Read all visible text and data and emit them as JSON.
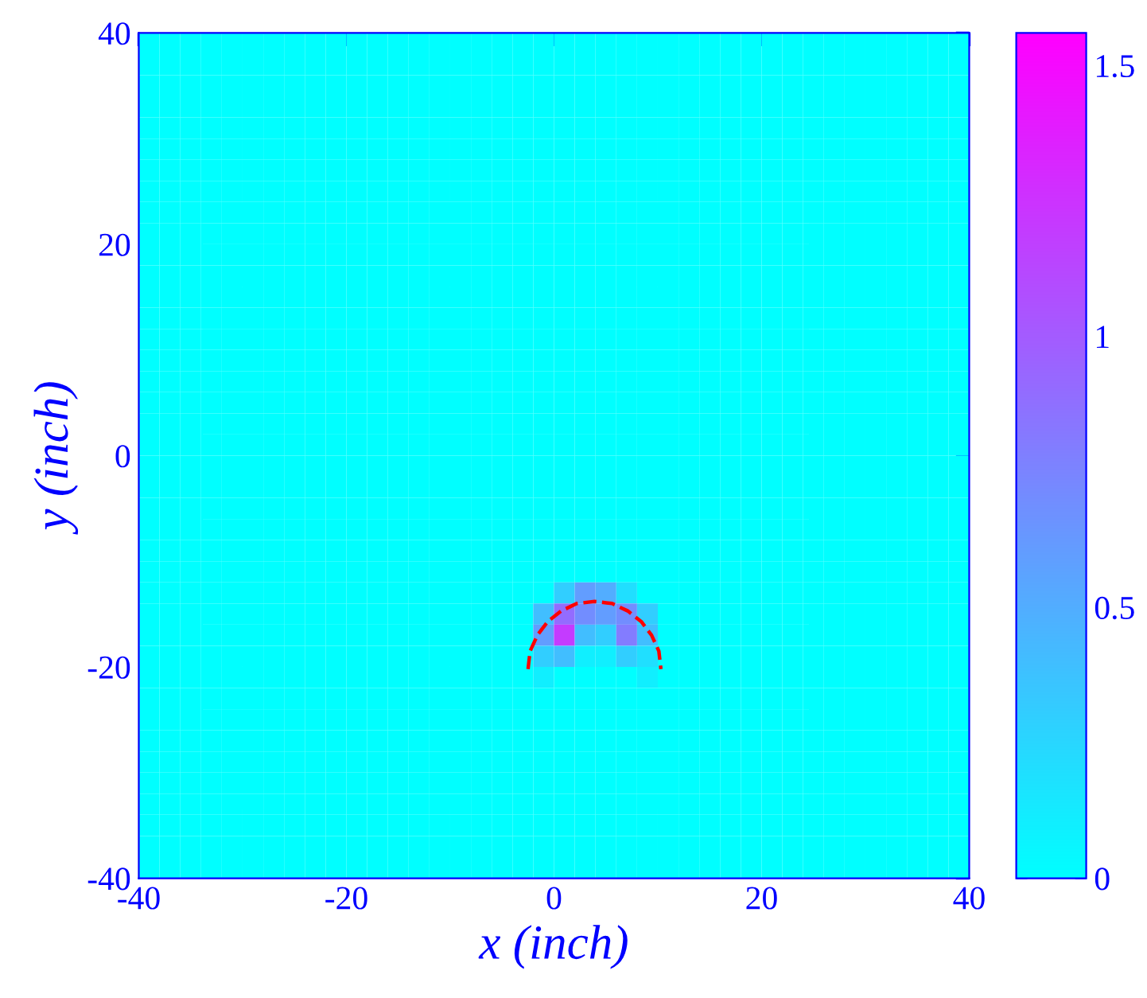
{
  "chart_data": {
    "type": "heatmap",
    "xlabel": "x (inch)",
    "ylabel": "y (inch)",
    "x": [
      -39,
      -37,
      -35,
      -33,
      -31,
      -29,
      -27,
      -25,
      -23,
      -21,
      -19,
      -17,
      -15,
      -13,
      -11,
      -9,
      -7,
      -5,
      -3,
      -1,
      1,
      3,
      5,
      7,
      9,
      11,
      13,
      15,
      17,
      19,
      21,
      23,
      25,
      27,
      29,
      31,
      33,
      35,
      37,
      39
    ],
    "y": [
      39,
      37,
      35,
      33,
      31,
      29,
      27,
      25,
      23,
      21,
      19,
      17,
      15,
      13,
      11,
      9,
      7,
      5,
      3,
      1,
      -1,
      -3,
      -5,
      -7,
      -9,
      -11,
      -13,
      -15,
      -17,
      -19,
      -21,
      -23,
      -25,
      -27,
      -29,
      -31,
      -33,
      -35,
      -37,
      -39
    ],
    "cells": [
      [
        0,
        0,
        0,
        0,
        0,
        0,
        0,
        0,
        0,
        0,
        0,
        0,
        0,
        0,
        0,
        0,
        0,
        0,
        0,
        0,
        0,
        0,
        0,
        0,
        0,
        0,
        0,
        0,
        0,
        0,
        0,
        0,
        0,
        0,
        0,
        0,
        0,
        0,
        0,
        0
      ],
      [
        0,
        0,
        0,
        0,
        0,
        0,
        0,
        0,
        0,
        0,
        0,
        0,
        0,
        0,
        0,
        0,
        0,
        0,
        0,
        0,
        0,
        0,
        0,
        0,
        0,
        0,
        0,
        0,
        0,
        0,
        0,
        0,
        0,
        0,
        0,
        0,
        0,
        0,
        0,
        0
      ],
      [
        0,
        0,
        0,
        0,
        0,
        0,
        0,
        0,
        0,
        0,
        0,
        0,
        0,
        0,
        0,
        0,
        0,
        0,
        0,
        0,
        0,
        0,
        0,
        0,
        0,
        0,
        0,
        0,
        0,
        0,
        0,
        0,
        0,
        0,
        0,
        0,
        0,
        0,
        0,
        0
      ],
      [
        0,
        0,
        0,
        0,
        0,
        0,
        0,
        0,
        0,
        0,
        0,
        0,
        0,
        0,
        0,
        0,
        0,
        0,
        0,
        0,
        0,
        0,
        0,
        0,
        0,
        0,
        0,
        0,
        0,
        0,
        0,
        0,
        0,
        0,
        0,
        0,
        0,
        0,
        0,
        0
      ],
      [
        0,
        0,
        0,
        0,
        0,
        0,
        0,
        0,
        0,
        0,
        0,
        0,
        0,
        0,
        0,
        0,
        0,
        0,
        0,
        0,
        0,
        0,
        0,
        0,
        0,
        0,
        0,
        0,
        0,
        0,
        0,
        0,
        0,
        0,
        0,
        0,
        0,
        0,
        0,
        0
      ],
      [
        0,
        0,
        0,
        0,
        0,
        0,
        0,
        0,
        0,
        0,
        0,
        0,
        0,
        0,
        0,
        0,
        0,
        0,
        0,
        0,
        0,
        0,
        0,
        0,
        0,
        0,
        0,
        0,
        0,
        0,
        0,
        0,
        0,
        0,
        0,
        0,
        0,
        0,
        0,
        0
      ],
      [
        0,
        0,
        0,
        0,
        0,
        0,
        0,
        0,
        0,
        0,
        0,
        0,
        0,
        0,
        0,
        0,
        0,
        0,
        0,
        0,
        0,
        0,
        0,
        0,
        0,
        0,
        0,
        0,
        0,
        0,
        0,
        0,
        0,
        0,
        0,
        0,
        0,
        0,
        0,
        0
      ],
      [
        0,
        0,
        0,
        0,
        0,
        0,
        0,
        0,
        0,
        0,
        0,
        0,
        0,
        0,
        0,
        0,
        0,
        0,
        0,
        0,
        0,
        0,
        0,
        0,
        0,
        0,
        0,
        0,
        0,
        0,
        0,
        0,
        0,
        0,
        0,
        0,
        0,
        0,
        0,
        0
      ],
      [
        0,
        0,
        0,
        0,
        0,
        0,
        0,
        0,
        0,
        0,
        0,
        0,
        0,
        0,
        0,
        0,
        0,
        0,
        0,
        0,
        0,
        0,
        0,
        0,
        0,
        0,
        0,
        0,
        0,
        0,
        0,
        0,
        0,
        0,
        0,
        0,
        0,
        0,
        0,
        0
      ],
      [
        0,
        0,
        0,
        0,
        0,
        0,
        0,
        0,
        0,
        0,
        0,
        0,
        0,
        0,
        0,
        0,
        0,
        0,
        0,
        0,
        0,
        0,
        0,
        0,
        0,
        0,
        0,
        0,
        0,
        0,
        0,
        0,
        0,
        0,
        0,
        0,
        0,
        0,
        0,
        0
      ],
      [
        0,
        0,
        0,
        0,
        0,
        0,
        0,
        0,
        0,
        0,
        0,
        0,
        0,
        0,
        0,
        0,
        0,
        0,
        0,
        0,
        0,
        0,
        0,
        0,
        0,
        0,
        0,
        0,
        0,
        0,
        0,
        0,
        0,
        0,
        0,
        0,
        0,
        0,
        0,
        0
      ],
      [
        0,
        0,
        0,
        0,
        0,
        0,
        0,
        0,
        0,
        0,
        0,
        0,
        0,
        0,
        0,
        0,
        0,
        0,
        0,
        0,
        0,
        0,
        0,
        0,
        0,
        0,
        0,
        0,
        0,
        0,
        0,
        0,
        0,
        0,
        0,
        0,
        0,
        0,
        0,
        0
      ],
      [
        0,
        0,
        0,
        0,
        0,
        0,
        0,
        0,
        0,
        0,
        0,
        0,
        0,
        0,
        0,
        0,
        0,
        0,
        0,
        0,
        0,
        0,
        0,
        0,
        0,
        0,
        0,
        0,
        0,
        0,
        0,
        0,
        0,
        0,
        0,
        0,
        0,
        0,
        0,
        0
      ],
      [
        0,
        0,
        0,
        0,
        0,
        0,
        0,
        0,
        0,
        0,
        0,
        0,
        0,
        0,
        0,
        0,
        0,
        0,
        0,
        0,
        0,
        0,
        0,
        0,
        0,
        0,
        0,
        0,
        0,
        0,
        0,
        0,
        0,
        0,
        0,
        0,
        0,
        0,
        0,
        0
      ],
      [
        0,
        0,
        0,
        0,
        0,
        0,
        0,
        0,
        0,
        0,
        0,
        0,
        0,
        0,
        0,
        0,
        0,
        0,
        0,
        0,
        0,
        0,
        0,
        0,
        0,
        0,
        0,
        0,
        0,
        0,
        0,
        0,
        0,
        0,
        0,
        0,
        0,
        0,
        0,
        0
      ],
      [
        0,
        0,
        0,
        0,
        0,
        0,
        0,
        0,
        0,
        0,
        0,
        0,
        0,
        0,
        0,
        0,
        0,
        0,
        0,
        0,
        0,
        0,
        0,
        0,
        0,
        0,
        0,
        0,
        0,
        0,
        0,
        0,
        0,
        0,
        0,
        0,
        0,
        0,
        0,
        0
      ],
      [
        0,
        0,
        0,
        0,
        0,
        0,
        0,
        0,
        0,
        0,
        0,
        0,
        0,
        0,
        0,
        0,
        0,
        0,
        0,
        0,
        0,
        0,
        0,
        0,
        0,
        0,
        0,
        0,
        0,
        0,
        0,
        0,
        0,
        0,
        0,
        0,
        0,
        0,
        0,
        0
      ],
      [
        0,
        0,
        0,
        0,
        0,
        0,
        0,
        0,
        0,
        0,
        0,
        0,
        0,
        0,
        0,
        0,
        0,
        0,
        0,
        0,
        0,
        0,
        0,
        0,
        0,
        0,
        0,
        0,
        0,
        0,
        0,
        0,
        0,
        0,
        0,
        0,
        0,
        0,
        0,
        0
      ],
      [
        0,
        0,
        0,
        0,
        0,
        0,
        0,
        0,
        0,
        0,
        0,
        0,
        0,
        0,
        0,
        0,
        0,
        0,
        0,
        0,
        0,
        0,
        0,
        0,
        0,
        0,
        0,
        0,
        0,
        0,
        0,
        0,
        0,
        0,
        0,
        0,
        0,
        0,
        0,
        0
      ],
      [
        0,
        0,
        0,
        0,
        0,
        0,
        0,
        0,
        0,
        0,
        0,
        0,
        0,
        0,
        0,
        0,
        0,
        0,
        0,
        0,
        0,
        0,
        0,
        0,
        0,
        0,
        0,
        0,
        0,
        0,
        0,
        0,
        0,
        0,
        0,
        0,
        0,
        0,
        0,
        0
      ],
      [
        0,
        0,
        0,
        0,
        0,
        0,
        0,
        0,
        0,
        0,
        0,
        0,
        0,
        0,
        0,
        0,
        0,
        0,
        0,
        0,
        0,
        0,
        0,
        0,
        0,
        0,
        0,
        0,
        0,
        0,
        0,
        0,
        0,
        0,
        0,
        0,
        0,
        0,
        0,
        0
      ],
      [
        0,
        0,
        0,
        0,
        0,
        0,
        0,
        0,
        0,
        0,
        0,
        0,
        0,
        0,
        0,
        0,
        0,
        0,
        0,
        0,
        0,
        0,
        0,
        0,
        0,
        0,
        0,
        0,
        0,
        0,
        0,
        0,
        0,
        0,
        0,
        0,
        0,
        0,
        0,
        0
      ],
      [
        0,
        0,
        0,
        0,
        0,
        0,
        0,
        0,
        0,
        0,
        0,
        0,
        0,
        0,
        0,
        0,
        0,
        0,
        0,
        0,
        0,
        0,
        0,
        0,
        0,
        0,
        0,
        0,
        0,
        0,
        0,
        0,
        0,
        0,
        0,
        0,
        0,
        0,
        0,
        0
      ],
      [
        0,
        0,
        0,
        0,
        0,
        0,
        0,
        0,
        0,
        0,
        0,
        0,
        0,
        0,
        0,
        0,
        0,
        0,
        0,
        0,
        0,
        0,
        0,
        0,
        0,
        0,
        0,
        0,
        0,
        0,
        0,
        0,
        0,
        0,
        0,
        0,
        0,
        0,
        0,
        0
      ],
      [
        0,
        0,
        0,
        0,
        0,
        0,
        0,
        0,
        0,
        0,
        0,
        0,
        0,
        0,
        0,
        0,
        0,
        0,
        0,
        0,
        0,
        0,
        0,
        0,
        0,
        0,
        0,
        0,
        0,
        0,
        0,
        0,
        0,
        0,
        0,
        0,
        0,
        0,
        0,
        0
      ],
      [
        0,
        0,
        0,
        0,
        0,
        0,
        0,
        0,
        0,
        0,
        0,
        0,
        0,
        0,
        0,
        0,
        0,
        0,
        0,
        0,
        0,
        0,
        0,
        0,
        0,
        0,
        0,
        0,
        0,
        0,
        0,
        0,
        0,
        0,
        0,
        0,
        0,
        0,
        0,
        0
      ],
      [
        0,
        0,
        0,
        0,
        0,
        0,
        0,
        0,
        0,
        0,
        0,
        0,
        0,
        0,
        0,
        0,
        0,
        0,
        0,
        0,
        0.3,
        0.6,
        0.5,
        0.2,
        0,
        0,
        0,
        0,
        0,
        0,
        0,
        0,
        0,
        0,
        0,
        0,
        0,
        0,
        0,
        0
      ],
      [
        0,
        0,
        0,
        0,
        0,
        0,
        0,
        0,
        0,
        0,
        0,
        0,
        0,
        0,
        0,
        0,
        0,
        0,
        0,
        0.4,
        0.9,
        0.7,
        0.6,
        0.7,
        0.3,
        0,
        0,
        0,
        0,
        0,
        0,
        0,
        0,
        0,
        0,
        0,
        0,
        0,
        0,
        0
      ],
      [
        0,
        0,
        0,
        0,
        0,
        0,
        0,
        0,
        0,
        0,
        0,
        0,
        0,
        0,
        0,
        0,
        0,
        0,
        0,
        0.6,
        1.2,
        0.4,
        0.3,
        0.8,
        0.4,
        0,
        0,
        0,
        0,
        0,
        0,
        0,
        0,
        0,
        0,
        0,
        0,
        0,
        0,
        0
      ],
      [
        0,
        0,
        0,
        0,
        0,
        0,
        0,
        0,
        0,
        0,
        0,
        0,
        0,
        0,
        0,
        0,
        0,
        0,
        0,
        0.3,
        0.4,
        0.1,
        0.1,
        0.3,
        0.2,
        0,
        0,
        0,
        0,
        0,
        0,
        0,
        0,
        0,
        0,
        0,
        0,
        0,
        0,
        0
      ],
      [
        0,
        0,
        0,
        0,
        0,
        0,
        0,
        0,
        0,
        0,
        0,
        0,
        0,
        0,
        0,
        0,
        0,
        0,
        0,
        0.1,
        0,
        0,
        0,
        0,
        0.1,
        0,
        0,
        0,
        0,
        0,
        0,
        0,
        0,
        0,
        0,
        0,
        0,
        0,
        0,
        0
      ],
      [
        0,
        0,
        0,
        0,
        0,
        0,
        0,
        0,
        0,
        0,
        0,
        0,
        0,
        0,
        0,
        0,
        0,
        0,
        0,
        0,
        0,
        0,
        0,
        0,
        0,
        0,
        0,
        0,
        0,
        0,
        0,
        0,
        0,
        0,
        0,
        0,
        0,
        0,
        0,
        0
      ],
      [
        0,
        0,
        0,
        0,
        0,
        0,
        0,
        0,
        0,
        0,
        0,
        0,
        0,
        0,
        0,
        0,
        0,
        0,
        0,
        0,
        0,
        0,
        0,
        0,
        0,
        0,
        0,
        0,
        0,
        0,
        0,
        0,
        0,
        0,
        0,
        0,
        0,
        0,
        0,
        0
      ],
      [
        0,
        0,
        0,
        0,
        0,
        0,
        0,
        0,
        0,
        0,
        0,
        0,
        0,
        0,
        0,
        0,
        0,
        0,
        0,
        0,
        0,
        0,
        0,
        0,
        0,
        0,
        0,
        0,
        0,
        0,
        0,
        0,
        0,
        0,
        0,
        0,
        0,
        0,
        0,
        0
      ],
      [
        0,
        0,
        0,
        0,
        0,
        0,
        0,
        0,
        0,
        0,
        0,
        0,
        0,
        0,
        0,
        0,
        0,
        0,
        0,
        0,
        0,
        0,
        0,
        0,
        0,
        0,
        0,
        0,
        0,
        0,
        0,
        0,
        0,
        0,
        0,
        0,
        0,
        0,
        0,
        0
      ],
      [
        0,
        0,
        0,
        0,
        0,
        0,
        0,
        0,
        0,
        0,
        0,
        0,
        0,
        0,
        0,
        0,
        0,
        0,
        0,
        0,
        0,
        0,
        0,
        0,
        0,
        0,
        0,
        0,
        0,
        0,
        0,
        0,
        0,
        0,
        0,
        0,
        0,
        0,
        0,
        0
      ],
      [
        0,
        0,
        0,
        0,
        0,
        0,
        0,
        0,
        0,
        0,
        0,
        0,
        0,
        0,
        0,
        0,
        0,
        0,
        0,
        0,
        0,
        0,
        0,
        0,
        0,
        0,
        0,
        0,
        0,
        0,
        0,
        0,
        0,
        0,
        0,
        0,
        0,
        0,
        0,
        0
      ],
      [
        0,
        0,
        0,
        0,
        0,
        0,
        0,
        0,
        0,
        0,
        0,
        0,
        0,
        0,
        0,
        0,
        0,
        0,
        0,
        0,
        0,
        0,
        0,
        0,
        0,
        0,
        0,
        0,
        0,
        0,
        0,
        0,
        0,
        0,
        0,
        0,
        0,
        0,
        0,
        0
      ],
      [
        0,
        0,
        0,
        0,
        0,
        0,
        0,
        0,
        0,
        0,
        0,
        0,
        0,
        0,
        0,
        0,
        0,
        0,
        0,
        0,
        0,
        0,
        0,
        0,
        0,
        0,
        0,
        0,
        0,
        0,
        0,
        0,
        0,
        0,
        0,
        0,
        0,
        0,
        0,
        0
      ],
      [
        0,
        0,
        0,
        0,
        0,
        0,
        0,
        0,
        0,
        0,
        0,
        0,
        0,
        0,
        0,
        0,
        0,
        0,
        0,
        0,
        0,
        0,
        0,
        0,
        0,
        0,
        0,
        0,
        0,
        0,
        0,
        0,
        0,
        0,
        0,
        0,
        0,
        0,
        0,
        0
      ]
    ],
    "clim": [
      0,
      1.56
    ],
    "cticks": [
      0,
      0.5,
      1,
      1.5
    ],
    "xlim": [
      -40,
      40
    ],
    "ylim": [
      -40,
      40
    ],
    "xticks": [
      -40,
      -20,
      0,
      20,
      40
    ],
    "yticks": [
      -40,
      -20,
      0,
      20,
      40
    ],
    "series": [
      {
        "type": "line",
        "color": "#ff0000",
        "line_style": "dashed",
        "x": [
          -2.5,
          -2.3,
          -1.6,
          -0.6,
          0.7,
          2.2,
          3.9,
          5.6,
          7.1,
          8.4,
          9.4,
          10.1,
          10.3
        ],
        "values": [
          -20.2,
          -18.5,
          -17.0,
          -15.7,
          -14.7,
          -14.0,
          -13.8,
          -14.0,
          -14.7,
          -15.7,
          -17.0,
          -18.5,
          -20.2
        ]
      }
    ],
    "grid": false
  }
}
